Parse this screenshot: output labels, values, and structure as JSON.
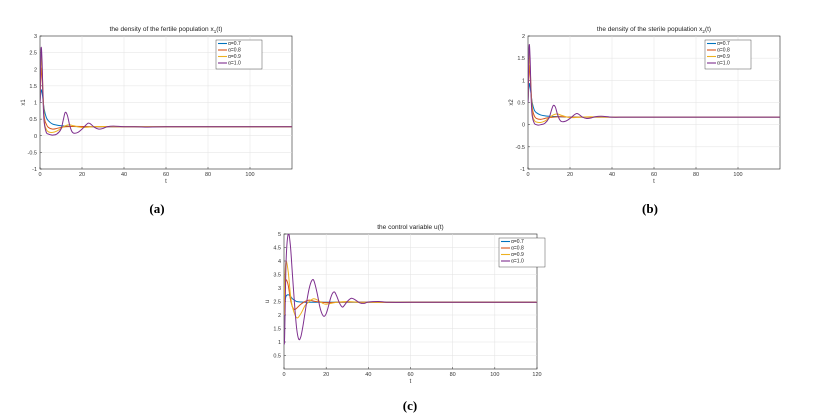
{
  "chart_data": [
    {
      "type": "line",
      "panel": "(a)",
      "title_prefix": "the density of the fertile population x",
      "title_sub": "1",
      "title_suffix": "(t)",
      "xlabel": "t",
      "ylabel": "x1",
      "xlim": [
        0,
        120
      ],
      "ylim": [
        -1,
        3
      ],
      "xticks": [
        0,
        20,
        40,
        60,
        80,
        100
      ],
      "yticks": [
        -1,
        -0.5,
        0,
        0.5,
        1,
        1.5,
        2,
        2.5,
        3
      ],
      "grid": true,
      "legend_position": "top-right",
      "series": [
        {
          "name": "α=0.7",
          "color": "#0072BD",
          "x": [
            0,
            0.5,
            1,
            2,
            3,
            4,
            6,
            8,
            10,
            12,
            15,
            20,
            30,
            40,
            60,
            80,
            100,
            120
          ],
          "y": [
            1.0,
            1.35,
            1.3,
            0.8,
            0.55,
            0.45,
            0.35,
            0.32,
            0.3,
            0.29,
            0.28,
            0.27,
            0.27,
            0.27,
            0.27,
            0.27,
            0.27,
            0.27
          ]
        },
        {
          "name": "α=0.8",
          "color": "#D95319",
          "x": [
            0,
            0.5,
            1,
            2,
            3,
            4,
            6,
            8,
            10,
            12,
            15,
            20,
            25,
            30,
            40,
            60,
            80,
            100,
            120
          ],
          "y": [
            1.0,
            2.0,
            1.7,
            0.6,
            0.35,
            0.25,
            0.2,
            0.22,
            0.25,
            0.27,
            0.28,
            0.28,
            0.27,
            0.27,
            0.27,
            0.27,
            0.27,
            0.27,
            0.27
          ]
        },
        {
          "name": "α=0.9",
          "color": "#EDB120",
          "x": [
            0,
            0.5,
            1,
            2,
            3,
            4,
            6,
            8,
            10,
            12,
            14,
            16,
            20,
            25,
            30,
            40,
            60,
            80,
            100,
            120
          ],
          "y": [
            1.0,
            2.3,
            2.0,
            0.5,
            0.2,
            0.12,
            0.1,
            0.14,
            0.22,
            0.3,
            0.33,
            0.3,
            0.25,
            0.27,
            0.28,
            0.27,
            0.27,
            0.27,
            0.27,
            0.27
          ]
        },
        {
          "name": "α=1.0",
          "color": "#7E2F8E",
          "x": [
            0,
            0.5,
            1,
            1.5,
            2,
            3,
            4,
            5,
            6,
            8,
            10,
            11,
            12,
            13,
            14,
            15,
            16,
            18,
            20,
            22,
            23,
            24,
            26,
            28,
            30,
            32,
            35,
            40,
            45,
            50,
            60,
            80,
            100,
            120
          ],
          "y": [
            1.0,
            2.6,
            2.2,
            1.0,
            0.4,
            0.1,
            0.05,
            0.03,
            0.02,
            0.05,
            0.2,
            0.45,
            0.7,
            0.62,
            0.35,
            0.15,
            0.08,
            0.1,
            0.2,
            0.33,
            0.38,
            0.36,
            0.25,
            0.2,
            0.22,
            0.27,
            0.29,
            0.27,
            0.27,
            0.26,
            0.27,
            0.27,
            0.27,
            0.27
          ]
        }
      ]
    },
    {
      "type": "line",
      "panel": "(b)",
      "title_prefix": "the density of the sterile population x",
      "title_sub": "2",
      "title_suffix": "(t)",
      "xlabel": "t",
      "ylabel": "x2",
      "xlim": [
        0,
        120
      ],
      "ylim": [
        -1,
        2
      ],
      "xticks": [
        0,
        20,
        40,
        60,
        80,
        100
      ],
      "yticks": [
        -1,
        -0.5,
        0,
        0.5,
        1,
        1.5,
        2
      ],
      "grid": true,
      "legend_position": "top-right",
      "series": [
        {
          "name": "α=0.7",
          "color": "#0072BD",
          "x": [
            0,
            0.5,
            1,
            2,
            3,
            4,
            6,
            8,
            10,
            15,
            20,
            30,
            40,
            60,
            80,
            100,
            120
          ],
          "y": [
            0.5,
            0.9,
            0.85,
            0.5,
            0.33,
            0.27,
            0.22,
            0.2,
            0.19,
            0.18,
            0.17,
            0.17,
            0.17,
            0.17,
            0.17,
            0.17,
            0.17
          ]
        },
        {
          "name": "α=0.8",
          "color": "#D95319",
          "x": [
            0,
            0.5,
            1,
            2,
            3,
            4,
            6,
            8,
            10,
            15,
            20,
            30,
            40,
            60,
            80,
            100,
            120
          ],
          "y": [
            0.5,
            1.3,
            1.1,
            0.4,
            0.2,
            0.14,
            0.12,
            0.14,
            0.16,
            0.18,
            0.17,
            0.17,
            0.17,
            0.17,
            0.17,
            0.17,
            0.17
          ]
        },
        {
          "name": "α=0.9",
          "color": "#EDB120",
          "x": [
            0,
            0.5,
            1,
            2,
            3,
            4,
            6,
            8,
            10,
            12,
            14,
            16,
            20,
            25,
            30,
            40,
            60,
            80,
            100,
            120
          ],
          "y": [
            0.5,
            1.55,
            1.3,
            0.3,
            0.1,
            0.06,
            0.05,
            0.08,
            0.15,
            0.22,
            0.24,
            0.21,
            0.16,
            0.17,
            0.18,
            0.17,
            0.17,
            0.17,
            0.17,
            0.17
          ]
        },
        {
          "name": "α=1.0",
          "color": "#7E2F8E",
          "x": [
            0,
            0.5,
            1,
            1.5,
            2,
            3,
            4,
            5,
            6,
            8,
            10,
            11,
            12,
            13,
            14,
            15,
            16,
            18,
            20,
            22,
            23,
            24,
            26,
            28,
            30,
            32,
            35,
            40,
            45,
            50,
            60,
            80,
            100,
            120
          ],
          "y": [
            0.5,
            1.75,
            1.5,
            0.6,
            0.2,
            0.03,
            0.0,
            -0.01,
            0.0,
            0.03,
            0.15,
            0.3,
            0.43,
            0.4,
            0.24,
            0.12,
            0.07,
            0.08,
            0.14,
            0.22,
            0.25,
            0.24,
            0.17,
            0.14,
            0.15,
            0.18,
            0.19,
            0.17,
            0.17,
            0.17,
            0.17,
            0.17,
            0.17,
            0.17
          ]
        }
      ]
    },
    {
      "type": "line",
      "panel": "(c)",
      "title_prefix": "the control variable u(t)",
      "title_sub": "",
      "title_suffix": "",
      "xlabel": "t",
      "ylabel": "u",
      "xlim": [
        0,
        120
      ],
      "ylim": [
        0,
        5
      ],
      "xticks": [
        0,
        20,
        40,
        60,
        80,
        100,
        120
      ],
      "yticks": [
        0.5,
        1,
        1.5,
        2,
        2.5,
        3,
        3.5,
        4,
        4.5,
        5
      ],
      "grid": true,
      "legend_position": "top-right",
      "series": [
        {
          "name": "α=0.7",
          "color": "#0072BD",
          "x": [
            0,
            0.5,
            1,
            2,
            3,
            4,
            5,
            6,
            8,
            10,
            12,
            15,
            20,
            30,
            40,
            60,
            80,
            100,
            120
          ],
          "y": [
            2.0,
            2.5,
            2.7,
            2.75,
            2.7,
            2.6,
            2.55,
            2.5,
            2.48,
            2.47,
            2.47,
            2.47,
            2.47,
            2.47,
            2.47,
            2.47,
            2.47,
            2.47,
            2.47
          ]
        },
        {
          "name": "α=0.8",
          "color": "#D95319",
          "x": [
            0,
            0.5,
            1,
            2,
            3,
            4,
            5,
            6,
            8,
            10,
            12,
            15,
            20,
            25,
            30,
            40,
            60,
            80,
            100,
            120
          ],
          "y": [
            2.0,
            3.0,
            3.3,
            3.1,
            2.6,
            2.3,
            2.2,
            2.25,
            2.4,
            2.5,
            2.55,
            2.5,
            2.46,
            2.47,
            2.48,
            2.47,
            2.47,
            2.47,
            2.47,
            2.47
          ]
        },
        {
          "name": "α=0.9",
          "color": "#EDB120",
          "x": [
            0,
            0.5,
            1,
            2,
            3,
            4,
            6,
            8,
            10,
            12,
            14,
            16,
            18,
            20,
            25,
            30,
            35,
            40,
            60,
            80,
            100,
            120
          ],
          "y": [
            2.0,
            3.5,
            4.0,
            3.6,
            2.8,
            2.3,
            1.9,
            2.05,
            2.35,
            2.5,
            2.6,
            2.55,
            2.45,
            2.4,
            2.47,
            2.5,
            2.47,
            2.47,
            2.47,
            2.47,
            2.47,
            2.47
          ]
        },
        {
          "name": "α=1.0",
          "color": "#7E2F8E",
          "x": [
            0,
            0.3,
            1,
            2,
            3,
            4,
            5,
            6,
            7,
            8,
            9,
            10,
            11,
            12,
            13,
            14,
            15,
            16,
            17,
            18,
            19,
            20,
            21,
            22,
            23,
            24,
            25,
            26,
            27,
            28,
            30,
            32,
            34,
            36,
            38,
            40,
            45,
            50,
            60,
            80,
            100,
            120
          ],
          "y": [
            1.0,
            1.2,
            4.0,
            5.0,
            4.6,
            3.5,
            2.4,
            1.5,
            1.1,
            1.2,
            1.6,
            2.1,
            2.6,
            3.0,
            3.25,
            3.3,
            3.05,
            2.7,
            2.3,
            2.05,
            1.95,
            2.05,
            2.3,
            2.6,
            2.8,
            2.85,
            2.7,
            2.5,
            2.35,
            2.3,
            2.5,
            2.62,
            2.55,
            2.45,
            2.43,
            2.48,
            2.5,
            2.47,
            2.47,
            2.47,
            2.47,
            2.47
          ]
        }
      ]
    }
  ],
  "captions": [
    "(a)",
    "(b)",
    "(c)"
  ]
}
